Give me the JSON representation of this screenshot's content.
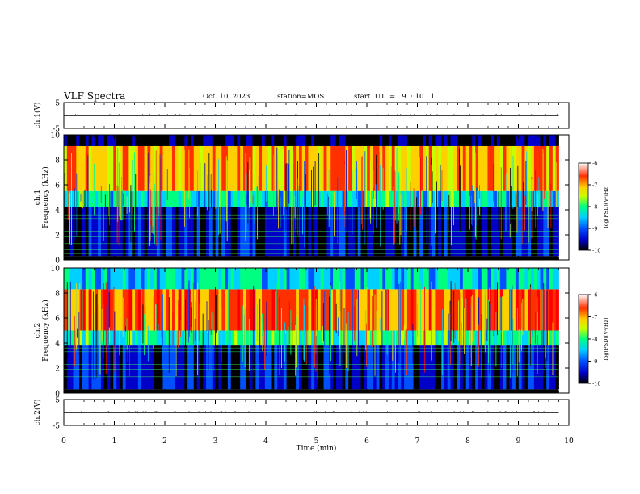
{
  "header": {
    "title": "VLF Spectra",
    "date": "Oct. 10, 2023",
    "station": "station=MOS",
    "start": "start  UT  =   9  : 10 : 1"
  },
  "chart_data": [
    {
      "type": "line",
      "name_panel": "ch1-waveform",
      "ylabel": "ch.1(V)",
      "ylim": [
        -5,
        5
      ],
      "yticks": [
        5,
        -5
      ],
      "xlim": [
        0,
        10
      ],
      "x": [
        0,
        9.8
      ],
      "values": [
        0,
        0
      ]
    },
    {
      "type": "heatmap",
      "ylabel": "ch.1\nFrequency (kHz)",
      "ylim": [
        0,
        10
      ],
      "yticks": [
        0,
        2,
        4,
        6,
        8,
        10
      ],
      "xlim": [
        0,
        10
      ],
      "data_xmax": 9.8,
      "colorbar": {
        "label": "log(PSD)(V²/Hz)",
        "range": [
          -10,
          -6
        ],
        "ticks": [
          -6,
          -7,
          -8,
          -9,
          -10
        ]
      },
      "bands": [
        {
          "fmin": 0.3,
          "fmax": 4.2,
          "level": -9.6
        },
        {
          "fmin": 4.2,
          "fmax": 5.5,
          "level": -8.3
        },
        {
          "fmin": 5.5,
          "fmax": 9.1,
          "level": -6.9
        },
        {
          "fmin": 9.1,
          "fmax": 10,
          "level": -10
        }
      ]
    },
    {
      "type": "heatmap",
      "ylabel": "ch.2\nFrequency (kHz)",
      "ylim": [
        0,
        10
      ],
      "yticks": [
        0,
        2,
        4,
        6,
        8,
        10
      ],
      "xlim": [
        0,
        10
      ],
      "data_xmax": 9.8,
      "colorbar": {
        "label": "log(PSD)(V²/Hz)",
        "range": [
          -10,
          -6
        ],
        "ticks": [
          -6,
          -7,
          -8,
          -9,
          -10
        ]
      },
      "bands": [
        {
          "fmin": 0.3,
          "fmax": 3.8,
          "level": -9.5
        },
        {
          "fmin": 3.8,
          "fmax": 5.0,
          "level": -8.1
        },
        {
          "fmin": 5.0,
          "fmax": 8.3,
          "level": -6.6
        },
        {
          "fmin": 8.3,
          "fmax": 10,
          "level": -8.4
        }
      ]
    },
    {
      "type": "line",
      "name_panel": "ch2-waveform",
      "ylabel": "ch.2(V)",
      "ylim": [
        -5,
        5
      ],
      "yticks": [
        5,
        -5
      ],
      "xlim": [
        0,
        10
      ],
      "xticks": [
        0,
        1,
        2,
        3,
        4,
        5,
        6,
        7,
        8,
        9,
        10
      ],
      "xlabel": "Time (min)",
      "x": [
        0,
        9.8
      ],
      "values": [
        0,
        0
      ]
    }
  ],
  "colors": {
    "scale": [
      "#000000",
      "#0000c8",
      "#0050ff",
      "#00d0ff",
      "#00ff80",
      "#c8ff00",
      "#ffd000",
      "#ff3000",
      "#ff0000"
    ]
  }
}
